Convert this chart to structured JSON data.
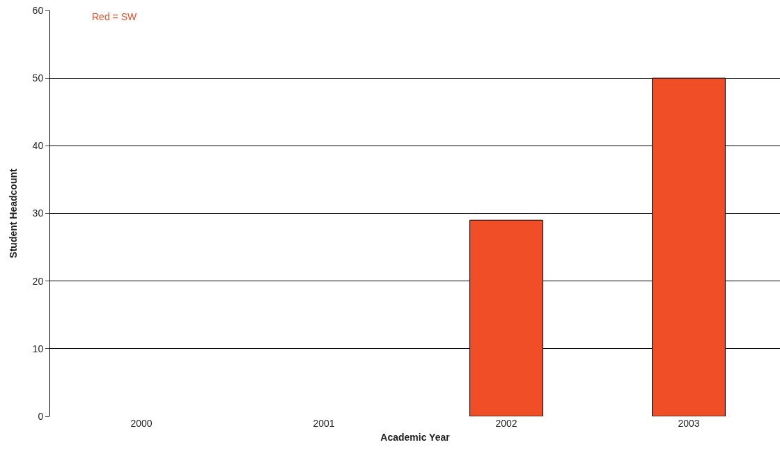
{
  "chart_data": {
    "type": "bar",
    "xlabel": "Academic Year",
    "ylabel": "Student Headcount",
    "categories": [
      "2000",
      "2001",
      "2002",
      "2003"
    ],
    "series": [
      {
        "color": "#f04e27",
        "values": [
          null,
          null,
          29,
          50
        ]
      }
    ],
    "ylim": [
      0,
      60
    ],
    "yticks": [
      0,
      10,
      20,
      30,
      40,
      50,
      60
    ],
    "grid": "y",
    "legend": false,
    "annotations": [
      "Red = SW"
    ]
  }
}
